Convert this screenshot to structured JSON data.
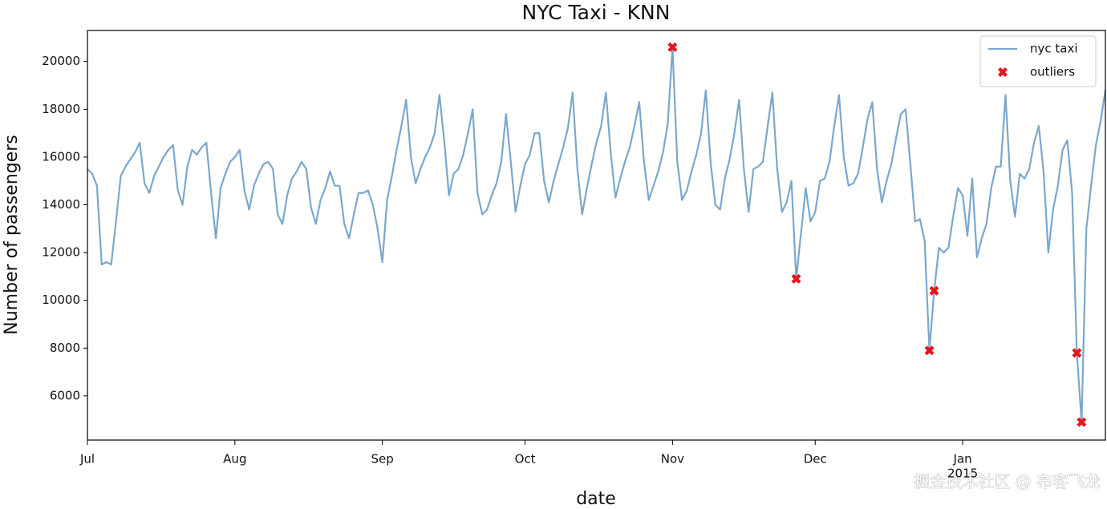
{
  "chart_data": {
    "type": "line",
    "title": "NYC Taxi - KNN",
    "x_label": "date",
    "y_label": "Number of passengers",
    "x_year_label": "2015",
    "watermark": "掘金技术社区 @ 布客飞龙",
    "categories": [
      "Jul",
      null,
      null,
      null,
      null,
      null,
      null,
      null,
      null,
      null,
      null,
      null,
      null,
      null,
      null,
      null,
      null,
      null,
      null,
      null,
      null,
      null,
      null,
      null,
      null,
      null,
      null,
      null,
      null,
      null,
      null,
      "Aug",
      null,
      null,
      null,
      null,
      null,
      null,
      null,
      null,
      null,
      null,
      null,
      null,
      null,
      null,
      null,
      null,
      null,
      null,
      null,
      null,
      null,
      null,
      null,
      null,
      null,
      null,
      null,
      null,
      null,
      null,
      "Sep",
      null,
      null,
      null,
      null,
      null,
      null,
      null,
      null,
      null,
      null,
      null,
      null,
      null,
      null,
      null,
      null,
      null,
      null,
      null,
      null,
      null,
      null,
      null,
      null,
      null,
      null,
      null,
      null,
      null,
      "Oct",
      null,
      null,
      null,
      null,
      null,
      null,
      null,
      null,
      null,
      null,
      null,
      null,
      null,
      null,
      null,
      null,
      null,
      null,
      null,
      null,
      null,
      null,
      null,
      null,
      null,
      null,
      null,
      null,
      null,
      null,
      "Nov",
      null,
      null,
      null,
      null,
      null,
      null,
      null,
      null,
      null,
      null,
      null,
      null,
      null,
      null,
      null,
      null,
      null,
      null,
      null,
      null,
      null,
      null,
      null,
      null,
      null,
      null,
      null,
      null,
      null,
      "Dec",
      null,
      null,
      null,
      null,
      null,
      null,
      null,
      null,
      null,
      null,
      null,
      null,
      null,
      null,
      null,
      null,
      null,
      null,
      null,
      null,
      null,
      null,
      null,
      null,
      null,
      null,
      null,
      null,
      null,
      null,
      "Jan",
      null,
      null,
      null,
      null,
      null,
      null,
      null,
      null,
      null,
      null,
      null,
      null,
      null,
      null,
      null,
      null,
      null,
      null,
      null,
      null,
      null,
      null,
      null,
      null,
      null,
      null,
      null,
      null,
      null,
      null
    ],
    "series": [
      {
        "name": "nyc taxi",
        "type": "line",
        "color": "#7ba7cc",
        "values": [
          15500,
          15300,
          14800,
          11500,
          11600,
          11500,
          13300,
          15200,
          15600,
          15900,
          16200,
          16600,
          14900,
          14500,
          15200,
          15600,
          16000,
          16300,
          16500,
          14600,
          14000,
          15600,
          16300,
          16100,
          16400,
          16600,
          14500,
          12600,
          14700,
          15300,
          15800,
          16000,
          16300,
          14600,
          13800,
          14800,
          15300,
          15700,
          15800,
          15500,
          13600,
          13200,
          14400,
          15100,
          15400,
          15800,
          15500,
          13900,
          13200,
          14200,
          14700,
          15400,
          14800,
          14800,
          13200,
          12600,
          13600,
          14500,
          14500,
          14600,
          14000,
          13000,
          11600,
          14200,
          15200,
          16300,
          17300,
          18400,
          16000,
          14900,
          15500,
          16000,
          16400,
          17000,
          18600,
          16700,
          14400,
          15300,
          15500,
          16100,
          17000,
          18000,
          14500,
          13600,
          13800,
          14400,
          14900,
          15800,
          17800,
          15800,
          13700,
          14800,
          15700,
          16100,
          17000,
          17000,
          15000,
          14100,
          15000,
          15700,
          16400,
          17200,
          18700,
          15500,
          13600,
          14700,
          15700,
          16600,
          17300,
          18700,
          16200,
          14300,
          15100,
          15800,
          16400,
          17300,
          18300,
          15800,
          14200,
          14800,
          15400,
          16200,
          17400,
          20600,
          15800,
          14200,
          14600,
          15400,
          16100,
          17000,
          18800,
          15800,
          14000,
          13800,
          15100,
          15900,
          17000,
          18400,
          15500,
          13700,
          15500,
          15600,
          15800,
          17300,
          18700,
          15500,
          13700,
          14100,
          15000,
          10900,
          12800,
          14700,
          13300,
          13700,
          15000,
          15100,
          15800,
          17300,
          18600,
          16000,
          14800,
          14900,
          15300,
          16400,
          17600,
          18300,
          15500,
          14100,
          15000,
          15700,
          16800,
          17800,
          18000,
          15700,
          13300,
          13400,
          12500,
          7900,
          10400,
          12200,
          12000,
          12200,
          13500,
          14700,
          14400,
          12700,
          15100,
          11800,
          12600,
          13200,
          14700,
          15600,
          15600,
          18600,
          15000,
          13500,
          15300,
          15100,
          15500,
          16600,
          17300,
          15400,
          12000,
          13800,
          14800,
          16300,
          16700,
          14500,
          7800,
          4900,
          13000,
          14800,
          16500,
          17500,
          18800
        ]
      },
      {
        "name": "outliers",
        "type": "scatter",
        "color": "#e8141c",
        "values": [
          null,
          null,
          null,
          null,
          null,
          null,
          null,
          null,
          null,
          null,
          null,
          null,
          null,
          null,
          null,
          null,
          null,
          null,
          null,
          null,
          null,
          null,
          null,
          null,
          null,
          null,
          null,
          null,
          null,
          null,
          null,
          null,
          null,
          null,
          null,
          null,
          null,
          null,
          null,
          null,
          null,
          null,
          null,
          null,
          null,
          null,
          null,
          null,
          null,
          null,
          null,
          null,
          null,
          null,
          null,
          null,
          null,
          null,
          null,
          null,
          null,
          null,
          null,
          null,
          null,
          null,
          null,
          null,
          null,
          null,
          null,
          null,
          null,
          null,
          null,
          null,
          null,
          null,
          null,
          null,
          null,
          null,
          null,
          null,
          null,
          null,
          null,
          null,
          null,
          null,
          null,
          null,
          null,
          null,
          null,
          null,
          null,
          null,
          null,
          null,
          null,
          null,
          null,
          null,
          null,
          null,
          null,
          null,
          null,
          null,
          null,
          null,
          null,
          null,
          null,
          null,
          null,
          null,
          null,
          null,
          null,
          null,
          null,
          20600,
          null,
          null,
          null,
          null,
          null,
          null,
          null,
          null,
          null,
          null,
          null,
          null,
          null,
          null,
          null,
          null,
          null,
          null,
          null,
          null,
          null,
          null,
          null,
          null,
          null,
          10900,
          null,
          null,
          null,
          null,
          null,
          null,
          null,
          null,
          null,
          null,
          null,
          null,
          null,
          null,
          null,
          null,
          null,
          null,
          null,
          null,
          null,
          null,
          null,
          null,
          null,
          null,
          null,
          7900,
          10400,
          null,
          null,
          null,
          null,
          null,
          null,
          null,
          null,
          null,
          null,
          null,
          null,
          null,
          null,
          null,
          null,
          null,
          null,
          null,
          null,
          null,
          null,
          null,
          null,
          null,
          null,
          null,
          null,
          null,
          7800,
          4900,
          null,
          null,
          null,
          null,
          null
        ]
      }
    ],
    "ylim": [
      4150,
      21300
    ],
    "yticks": [
      6000,
      8000,
      10000,
      12000,
      14000,
      16000,
      18000,
      20000
    ],
    "grid": false,
    "legend": "upper right"
  }
}
